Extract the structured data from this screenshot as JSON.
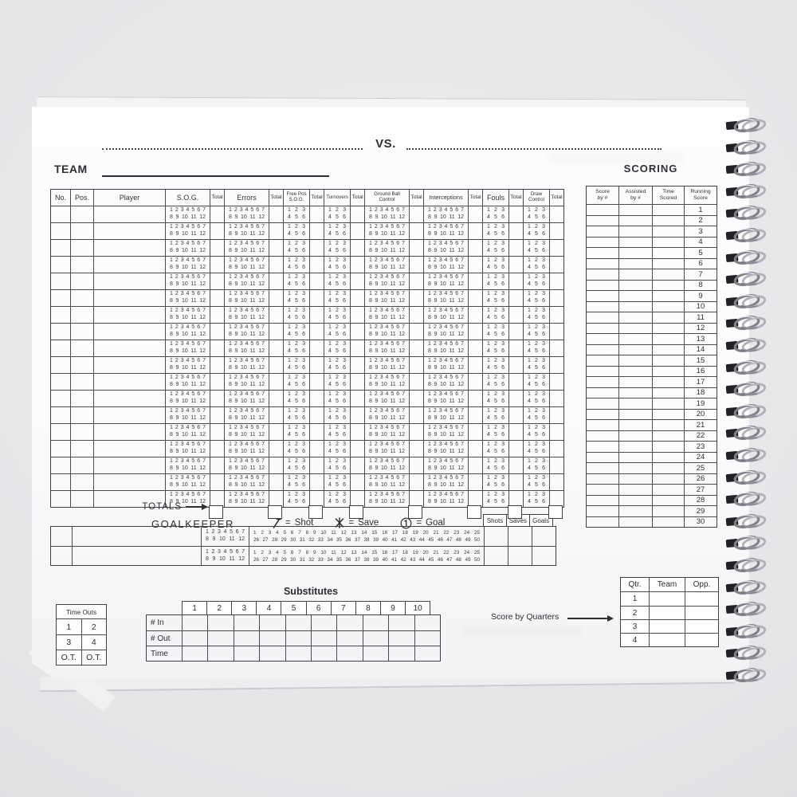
{
  "page_header": {
    "vs_label": "VS.",
    "team_label": "TEAM"
  },
  "main_table": {
    "totals_label": "TOTALS",
    "columns": [
      {
        "id": "no",
        "lines": [
          "No."
        ],
        "type": "plain"
      },
      {
        "id": "pos",
        "lines": [
          "Pos."
        ],
        "type": "plain"
      },
      {
        "id": "player",
        "lines": [
          "Player"
        ],
        "type": "plain"
      },
      {
        "id": "sog",
        "lines": [
          "S.O.G."
        ],
        "type": "wide"
      },
      {
        "id": "sog-total",
        "lines": [
          "Total"
        ],
        "type": "total"
      },
      {
        "id": "errors",
        "lines": [
          "Errors"
        ],
        "type": "wide"
      },
      {
        "id": "errors-total",
        "lines": [
          "Total"
        ],
        "type": "total"
      },
      {
        "id": "free-pos-sog",
        "lines": [
          "Free Pos",
          "S.O.G."
        ],
        "type": "narrow",
        "small": true
      },
      {
        "id": "free-pos-total",
        "lines": [
          "Total"
        ],
        "type": "total"
      },
      {
        "id": "turnovers",
        "lines": [
          "Turnovers"
        ],
        "type": "narrow",
        "small": true
      },
      {
        "id": "turnovers-total",
        "lines": [
          "Total"
        ],
        "type": "total"
      },
      {
        "id": "ground-ball-control",
        "lines": [
          "Ground Ball",
          "Control"
        ],
        "type": "wide",
        "small": true
      },
      {
        "id": "ground-ball-total",
        "lines": [
          "Total"
        ],
        "type": "total"
      },
      {
        "id": "interceptions",
        "lines": [
          "Interceptions"
        ],
        "type": "wide",
        "mid": true
      },
      {
        "id": "interceptions-total",
        "lines": [
          "Total"
        ],
        "type": "total"
      },
      {
        "id": "fouls",
        "lines": [
          "Fouls"
        ],
        "type": "narrow"
      },
      {
        "id": "fouls-total",
        "lines": [
          "Total"
        ],
        "type": "total"
      },
      {
        "id": "draw-control",
        "lines": [
          "Draw",
          "Control"
        ],
        "type": "narrow",
        "small": true
      },
      {
        "id": "draw-total",
        "lines": [
          "Total"
        ],
        "type": "total"
      }
    ],
    "wide_numbers": [
      "1 2 3 4 5 6 7",
      "8 9 10 11 12"
    ],
    "narrow_numbers": [
      "1 2 3",
      "4 5 6"
    ],
    "row_count": 18
  },
  "scoring": {
    "title": "SCORING",
    "columns": [
      [
        "Score",
        "by #"
      ],
      [
        "Assisted",
        "by #"
      ],
      [
        "Time",
        "Scored"
      ],
      [
        "Running",
        "Score"
      ]
    ],
    "running_score": [
      "1",
      "2",
      "3",
      "4",
      "5",
      "6",
      "7",
      "8",
      "9",
      "10",
      "11",
      "12",
      "13",
      "14",
      "15",
      "16",
      "17",
      "18",
      "19",
      "20",
      "21",
      "22",
      "23",
      "24",
      "25",
      "26",
      "27",
      "28",
      "29",
      "30"
    ]
  },
  "goalkeeper": {
    "title": "GOALKEEPER",
    "legend_equals": "=",
    "legend": [
      {
        "symbol": "shot-mark",
        "meaning": "Shot"
      },
      {
        "symbol": "save-mark",
        "meaning": "Save"
      },
      {
        "symbol": "goal-mark",
        "meaning": "Goal"
      }
    ],
    "stat_columns": [
      "Shots",
      "Saves",
      "Goals"
    ],
    "sog_numbers": [
      "1 2 3 4 5 6 7",
      "8 9 10 11 12"
    ],
    "tally_numbers": [
      "1 2 3 4 5 6 7 8 9 10 11 12 13 14 15 16 17 18 19 20 21 22 23 24 25",
      "26 27 28 29 30 31 32 33 34 35 36 37 38 39 40 41 42 43 44 45 46 47 48 49 50"
    ],
    "row_count": 2
  },
  "substitutes": {
    "title": "Substitutes",
    "columns": [
      "1",
      "2",
      "3",
      "4",
      "5",
      "6",
      "7",
      "8",
      "9",
      "10"
    ],
    "row_labels": [
      "# In",
      "# Out",
      "Time"
    ]
  },
  "time_outs": {
    "title": "Time Outs",
    "cells": [
      [
        "1",
        "2"
      ],
      [
        "3",
        "4"
      ],
      [
        "O.T.",
        "O.T."
      ]
    ]
  },
  "score_by_quarters": {
    "label": "Score by Quarters",
    "columns": [
      "Qtr.",
      "Team",
      "Opp."
    ],
    "rows": [
      "1",
      "2",
      "3",
      "4"
    ]
  },
  "colors": {
    "page": "#fbfbfc",
    "background": "#e5e5e8",
    "ink": "#2e2e33",
    "line": "#4a4a4f"
  }
}
